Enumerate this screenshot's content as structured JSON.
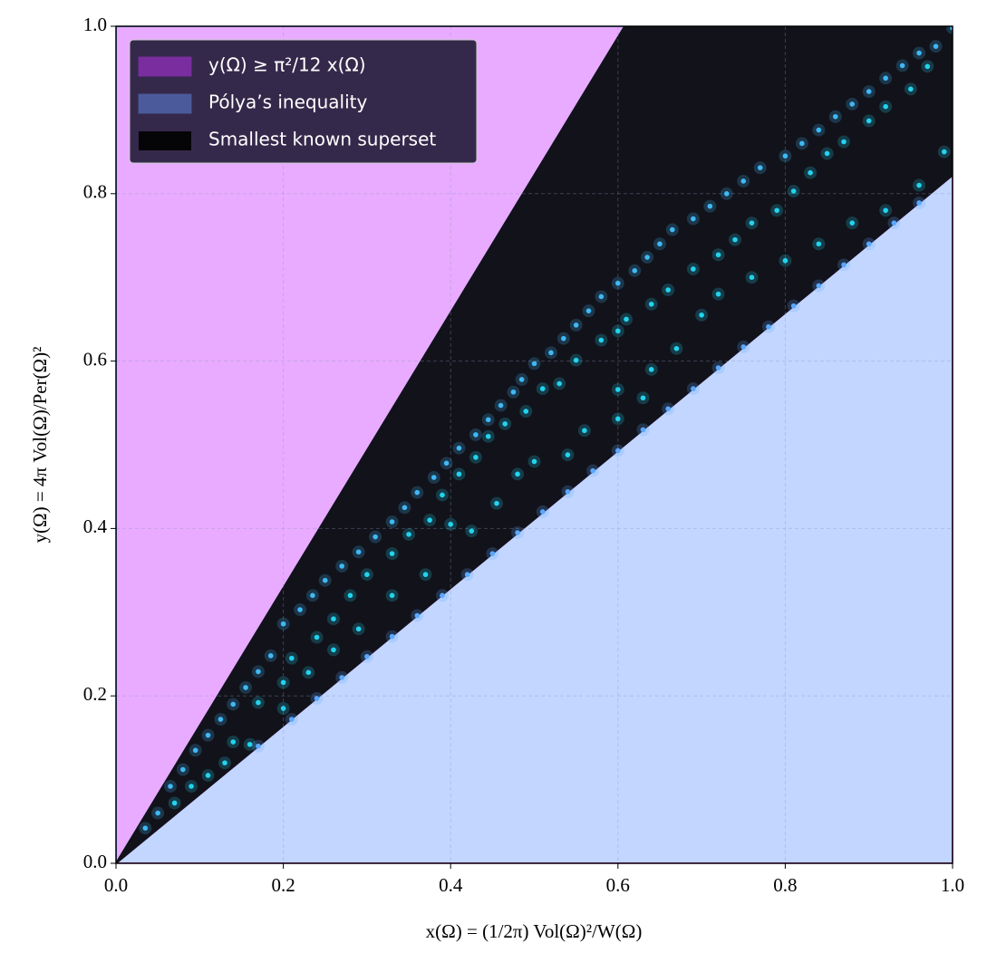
{
  "chart_data": {
    "type": "scatter",
    "xlabel": "x(Ω) = (1/2π) Vol(Ω)²/W(Ω)",
    "ylabel": "y(Ω) = 4π Vol(Ω)/Per(Ω)²",
    "xlim": [
      0,
      1
    ],
    "ylim": [
      0,
      1
    ],
    "xticks": [
      {
        "value": 0,
        "label": "0.0"
      },
      {
        "value": 0.2,
        "label": "0.2"
      },
      {
        "value": 0.4,
        "label": "0.4"
      },
      {
        "value": 0.6,
        "label": "0.6"
      },
      {
        "value": 0.8,
        "label": "0.8"
      },
      {
        "value": 1,
        "label": "1.0"
      }
    ],
    "yticks": [
      {
        "value": 0,
        "label": "0.0"
      },
      {
        "value": 0.2,
        "label": "0.2"
      },
      {
        "value": 0.4,
        "label": "0.4"
      },
      {
        "value": 0.6,
        "label": "0.6"
      },
      {
        "value": 0.8,
        "label": "0.8"
      },
      {
        "value": 1,
        "label": "1.0"
      }
    ],
    "grid": true,
    "legend": "upper left",
    "regions": [
      {
        "name": "y(Ω) ≥ π²/12 x(Ω)",
        "color": "#e9abff",
        "swatch": "#7a2d9e",
        "edge": "#6f8fff",
        "x": [
          0,
          0.608,
          0
        ],
        "y": [
          0,
          1,
          1
        ]
      },
      {
        "name": "Pólya’s inequality",
        "color": "#c2d6ff",
        "swatch": "#4b5a9a",
        "edge": "#e040fb",
        "x": [
          0,
          1,
          1
        ],
        "y": [
          0,
          0.822,
          0
        ]
      },
      {
        "name": "Smallest known superset",
        "color": "#12121a",
        "swatch": "#050508",
        "edge": "#12121a",
        "x": [
          0,
          0.608,
          1,
          1
        ],
        "y": [
          0,
          1,
          1,
          0.822
        ]
      }
    ],
    "series": [
      {
        "color": "#3fb8f5",
        "x": [
          0.035,
          0.05,
          0.065,
          0.08,
          0.095,
          0.11,
          0.125,
          0.14,
          0.155,
          0.17,
          0.185,
          0.2,
          0.22,
          0.235,
          0.25,
          0.27,
          0.29,
          0.31,
          0.33,
          0.345,
          0.36,
          0.38,
          0.395,
          0.41,
          0.43,
          0.445,
          0.46,
          0.475,
          0.485,
          0.5,
          0.52,
          0.535,
          0.55,
          0.565,
          0.58,
          0.6,
          0.62,
          0.635,
          0.65,
          0.665,
          0.69,
          0.71,
          0.73,
          0.75,
          0.77,
          0.8,
          0.82,
          0.84,
          0.86,
          0.88,
          0.9,
          0.92,
          0.94,
          0.96,
          0.98,
          1.0
        ],
        "y": [
          0.042,
          0.06,
          0.092,
          0.112,
          0.135,
          0.153,
          0.172,
          0.19,
          0.21,
          0.229,
          0.248,
          0.286,
          0.303,
          0.32,
          0.338,
          0.355,
          0.372,
          0.39,
          0.408,
          0.425,
          0.443,
          0.461,
          0.478,
          0.496,
          0.512,
          0.53,
          0.547,
          0.563,
          0.578,
          0.597,
          0.61,
          0.627,
          0.643,
          0.66,
          0.677,
          0.693,
          0.708,
          0.724,
          0.74,
          0.757,
          0.77,
          0.785,
          0.8,
          0.815,
          0.831,
          0.845,
          0.86,
          0.876,
          0.892,
          0.907,
          0.922,
          0.938,
          0.953,
          0.968,
          0.976,
          0.998
        ]
      },
      {
        "color": "#22d3ee",
        "x": [
          0.07,
          0.09,
          0.11,
          0.14,
          0.17,
          0.2,
          0.21,
          0.24,
          0.26,
          0.28,
          0.3,
          0.33,
          0.35,
          0.375,
          0.39,
          0.41,
          0.43,
          0.445,
          0.465,
          0.49,
          0.51,
          0.53,
          0.55,
          0.58,
          0.6,
          0.61,
          0.64,
          0.66,
          0.69,
          0.72,
          0.74,
          0.76,
          0.79,
          0.81,
          0.83,
          0.85,
          0.87,
          0.9,
          0.92,
          0.95,
          0.97
        ],
        "y": [
          0.072,
          0.092,
          0.105,
          0.145,
          0.192,
          0.216,
          0.245,
          0.27,
          0.292,
          0.32,
          0.345,
          0.37,
          0.393,
          0.41,
          0.44,
          0.465,
          0.485,
          0.51,
          0.525,
          0.54,
          0.567,
          0.573,
          0.601,
          0.625,
          0.636,
          0.65,
          0.668,
          0.685,
          0.71,
          0.727,
          0.745,
          0.765,
          0.78,
          0.803,
          0.825,
          0.848,
          0.862,
          0.887,
          0.904,
          0.925,
          0.952
        ]
      },
      {
        "color": "#22d3ee",
        "x": [
          0.13,
          0.16,
          0.2,
          0.23,
          0.26,
          0.29,
          0.33,
          0.37,
          0.4,
          0.425,
          0.455,
          0.48,
          0.5,
          0.54,
          0.56,
          0.6,
          0.6,
          0.63,
          0.64,
          0.67,
          0.7,
          0.72,
          0.76,
          0.8,
          0.84,
          0.88,
          0.92,
          0.96,
          0.99
        ],
        "y": [
          0.12,
          0.142,
          0.185,
          0.228,
          0.255,
          0.28,
          0.32,
          0.345,
          0.405,
          0.397,
          0.43,
          0.465,
          0.48,
          0.488,
          0.517,
          0.531,
          0.566,
          0.556,
          0.59,
          0.615,
          0.655,
          0.68,
          0.7,
          0.72,
          0.74,
          0.765,
          0.78,
          0.81,
          0.85
        ]
      },
      {
        "color": "#5aa8ff",
        "x": [
          0.17,
          0.21,
          0.24,
          0.27,
          0.3,
          0.33,
          0.36,
          0.39,
          0.42,
          0.45,
          0.48,
          0.51,
          0.54,
          0.57,
          0.6,
          0.63,
          0.66,
          0.69,
          0.72,
          0.75,
          0.78,
          0.81,
          0.84,
          0.87,
          0.9,
          0.93,
          0.96
        ],
        "y": [
          0.14,
          0.172,
          0.197,
          0.222,
          0.247,
          0.271,
          0.296,
          0.32,
          0.345,
          0.37,
          0.395,
          0.42,
          0.444,
          0.469,
          0.493,
          0.518,
          0.543,
          0.567,
          0.592,
          0.617,
          0.641,
          0.666,
          0.69,
          0.715,
          0.74,
          0.765,
          0.789
        ]
      }
    ]
  }
}
